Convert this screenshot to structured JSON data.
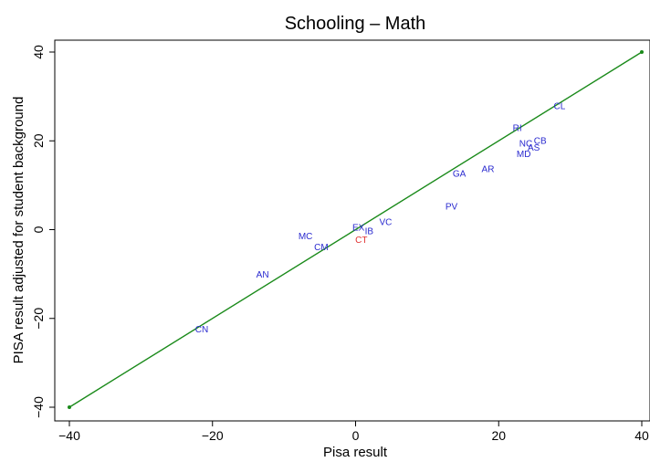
{
  "chart_data": {
    "type": "scatter",
    "title": "Schooling – Math",
    "xlabel": "Pisa result",
    "ylabel": "PISA result adjusted for student background",
    "xlim": [
      -41,
      41
    ],
    "ylim": [
      -42,
      42
    ],
    "xticks": [
      -40,
      -20,
      0,
      20,
      40
    ],
    "yticks": [
      -40,
      -20,
      0,
      20,
      40
    ],
    "xtick_labels": [
      "−40",
      "−20",
      "0",
      "20",
      "40"
    ],
    "ytick_labels": [
      "−40",
      "−20",
      "0",
      "20",
      "40"
    ],
    "grid": false,
    "reference_line": {
      "x": [
        -40,
        40
      ],
      "y": [
        -40,
        40
      ],
      "color": "#1a8a1a"
    },
    "points": [
      {
        "label": "CL",
        "x": 28.5,
        "y": 28.0,
        "color": "#2a2acf"
      },
      {
        "label": "RI",
        "x": 22.6,
        "y": 23.0,
        "color": "#2a2acf"
      },
      {
        "label": "NC",
        "x": 23.8,
        "y": 19.5,
        "color": "#2a2acf"
      },
      {
        "label": "CB",
        "x": 25.8,
        "y": 20.2,
        "color": "#2a2acf"
      },
      {
        "label": "AS",
        "x": 24.9,
        "y": 18.6,
        "color": "#2a2acf"
      },
      {
        "label": "MD",
        "x": 23.5,
        "y": 17.2,
        "color": "#2a2acf"
      },
      {
        "label": "AR",
        "x": 18.5,
        "y": 13.8,
        "color": "#2a2acf"
      },
      {
        "label": "GA",
        "x": 14.5,
        "y": 12.8,
        "color": "#2a2acf"
      },
      {
        "label": "PV",
        "x": 13.4,
        "y": 5.3,
        "color": "#2a2acf"
      },
      {
        "label": "VC",
        "x": 4.2,
        "y": 1.8,
        "color": "#2a2acf"
      },
      {
        "label": "EX",
        "x": 0.4,
        "y": 0.6,
        "color": "#2a2acf"
      },
      {
        "label": "IB",
        "x": 1.9,
        "y": -0.2,
        "color": "#2a2acf"
      },
      {
        "label": "CT",
        "x": 0.8,
        "y": -2.2,
        "color": "#e03030"
      },
      {
        "label": "MC",
        "x": -7.0,
        "y": -1.3,
        "color": "#2a2acf"
      },
      {
        "label": "CM",
        "x": -4.8,
        "y": -3.8,
        "color": "#2a2acf"
      },
      {
        "label": "AN",
        "x": -13.0,
        "y": -10.0,
        "color": "#2a2acf"
      },
      {
        "label": "CN",
        "x": -21.5,
        "y": -22.3,
        "color": "#2a2acf"
      }
    ]
  }
}
